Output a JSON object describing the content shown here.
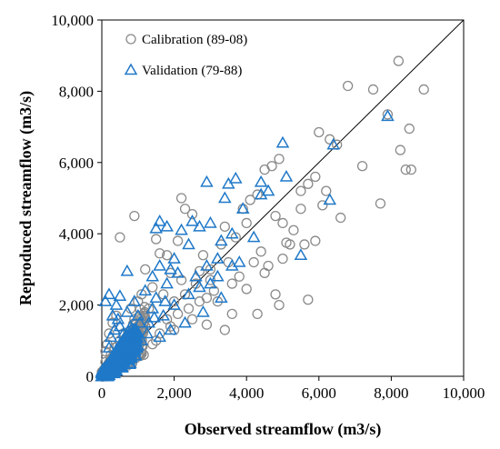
{
  "chart_data": {
    "type": "scatter",
    "xlabel": "Observed streamflow (m3/s)",
    "ylabel": "Reproduced streamflow (m3/s)",
    "xlim": [
      0,
      10000
    ],
    "ylim": [
      0,
      10000
    ],
    "x_ticks": [
      "0",
      "2,000",
      "4,000",
      "6,000",
      "8,000",
      "10,000"
    ],
    "y_ticks": [
      "0",
      "2,000",
      "4,000",
      "6,000",
      "8,000",
      "10,000"
    ],
    "grid": false,
    "legend_position": "top-left",
    "reference_line": "1:1",
    "series": [
      {
        "name": "Calibration (89-08)",
        "marker": "circle",
        "color": "#8a8a8a",
        "points": [
          [
            8200,
            8850
          ],
          [
            6800,
            8150
          ],
          [
            7500,
            8050
          ],
          [
            8900,
            8050
          ],
          [
            7900,
            7350
          ],
          [
            6300,
            6650
          ],
          [
            6000,
            6850
          ],
          [
            6500,
            6500
          ],
          [
            7200,
            5900
          ],
          [
            8500,
            6950
          ],
          [
            8250,
            6350
          ],
          [
            8400,
            5800
          ],
          [
            8550,
            5800
          ],
          [
            7700,
            4850
          ],
          [
            6600,
            4450
          ],
          [
            6100,
            4800
          ],
          [
            5700,
            5400
          ],
          [
            5900,
            5600
          ],
          [
            5500,
            5200
          ],
          [
            5900,
            3800
          ],
          [
            5600,
            3700
          ],
          [
            5100,
            3750
          ],
          [
            5200,
            3700
          ],
          [
            5700,
            2150
          ],
          [
            5000,
            4300
          ],
          [
            4700,
            5900
          ],
          [
            4500,
            5800
          ],
          [
            4900,
            6100
          ],
          [
            4300,
            5100
          ],
          [
            4100,
            4950
          ],
          [
            3900,
            4700
          ],
          [
            4000,
            4300
          ],
          [
            4800,
            4500
          ],
          [
            4600,
            3100
          ],
          [
            4500,
            2900
          ],
          [
            4000,
            2450
          ],
          [
            3800,
            2800
          ],
          [
            4800,
            2300
          ],
          [
            4900,
            2000
          ],
          [
            4300,
            1750
          ],
          [
            3600,
            1750
          ],
          [
            3200,
            2100
          ],
          [
            3000,
            2700
          ],
          [
            2700,
            2950
          ],
          [
            2500,
            4550
          ],
          [
            2200,
            5000
          ],
          [
            2300,
            4700
          ],
          [
            2100,
            3800
          ],
          [
            1800,
            3400
          ],
          [
            900,
            4500
          ],
          [
            500,
            3900
          ],
          [
            1500,
            3850
          ],
          [
            1600,
            3450
          ],
          [
            1200,
            3000
          ],
          [
            2000,
            2100
          ],
          [
            2900,
            1450
          ],
          [
            3400,
            1300
          ],
          [
            2100,
            1750
          ],
          [
            2500,
            1600
          ],
          [
            1900,
            1400
          ],
          [
            1600,
            1200
          ],
          [
            1400,
            900
          ],
          [
            1100,
            850
          ],
          [
            800,
            600
          ],
          [
            700,
            1000
          ],
          [
            600,
            1200
          ],
          [
            900,
            1600
          ],
          [
            1300,
            1900
          ],
          [
            1700,
            2300
          ],
          [
            2300,
            2300
          ],
          [
            2600,
            2600
          ],
          [
            3000,
            3000
          ],
          [
            3500,
            3200
          ],
          [
            3300,
            3700
          ],
          [
            2800,
            3400
          ],
          [
            1400,
            2500
          ],
          [
            1000,
            2100
          ],
          [
            400,
            1700
          ],
          [
            300,
            1500
          ],
          [
            200,
            1200
          ],
          [
            150,
            900
          ],
          [
            100,
            700
          ],
          [
            100,
            400
          ],
          [
            200,
            300
          ],
          [
            300,
            200
          ],
          [
            400,
            500
          ],
          [
            500,
            700
          ],
          [
            600,
            400
          ],
          [
            700,
            300
          ],
          [
            800,
            900
          ],
          [
            1000,
            600
          ],
          [
            1200,
            1400
          ],
          [
            1500,
            1000
          ],
          [
            1800,
            1600
          ],
          [
            2000,
            1300
          ],
          [
            2400,
            1900
          ],
          [
            2700,
            2100
          ],
          [
            3100,
            2400
          ],
          [
            3600,
            2600
          ],
          [
            4200,
            3200
          ],
          [
            4400,
            3500
          ],
          [
            5000,
            3300
          ],
          [
            5300,
            4100
          ],
          [
            5500,
            4700
          ],
          [
            6200,
            5200
          ],
          [
            3400,
            4200
          ],
          [
            3700,
            3900
          ],
          [
            2900,
            2200
          ],
          [
            2200,
            2700
          ],
          [
            1900,
            2900
          ],
          [
            1100,
            2300
          ],
          [
            800,
            1900
          ],
          [
            500,
            1000
          ],
          [
            350,
            800
          ],
          [
            250,
            600
          ]
        ]
      },
      {
        "name": "Validation (79-88)",
        "marker": "triangle",
        "color": "#1f78c8",
        "points": [
          [
            7900,
            7300
          ],
          [
            6400,
            6500
          ],
          [
            5000,
            6550
          ],
          [
            6300,
            4950
          ],
          [
            5100,
            5600
          ],
          [
            4600,
            5200
          ],
          [
            4400,
            5450
          ],
          [
            4400,
            5100
          ],
          [
            3700,
            5550
          ],
          [
            3500,
            5400
          ],
          [
            3400,
            5000
          ],
          [
            2900,
            5450
          ],
          [
            3900,
            4700
          ],
          [
            3600,
            4000
          ],
          [
            3300,
            3800
          ],
          [
            3000,
            4300
          ],
          [
            2700,
            4200
          ],
          [
            2500,
            4350
          ],
          [
            2200,
            4100
          ],
          [
            1800,
            4200
          ],
          [
            1600,
            4350
          ],
          [
            1500,
            4150
          ],
          [
            2400,
            3700
          ],
          [
            3800,
            3200
          ],
          [
            3600,
            3100
          ],
          [
            3200,
            3300
          ],
          [
            4200,
            3900
          ],
          [
            5500,
            3400
          ],
          [
            2000,
            3300
          ],
          [
            1900,
            3000
          ],
          [
            1600,
            3100
          ],
          [
            1400,
            2800
          ],
          [
            700,
            2950
          ],
          [
            500,
            2250
          ],
          [
            400,
            2000
          ],
          [
            200,
            2300
          ],
          [
            100,
            2100
          ],
          [
            300,
            1700
          ],
          [
            500,
            1400
          ],
          [
            700,
            1800
          ],
          [
            900,
            2100
          ],
          [
            1200,
            2400
          ],
          [
            1500,
            2200
          ],
          [
            1800,
            2600
          ],
          [
            2100,
            2900
          ],
          [
            2400,
            2300
          ],
          [
            2700,
            2500
          ],
          [
            3000,
            2600
          ],
          [
            3300,
            2200
          ],
          [
            2800,
            1800
          ],
          [
            2300,
            1500
          ],
          [
            1900,
            1300
          ],
          [
            1600,
            1100
          ],
          [
            1300,
            1500
          ],
          [
            1100,
            1000
          ],
          [
            900,
            700
          ],
          [
            700,
            500
          ],
          [
            500,
            900
          ],
          [
            400,
            600
          ],
          [
            300,
            400
          ],
          [
            250,
            1100
          ],
          [
            600,
            1200
          ],
          [
            800,
            1400
          ],
          [
            1000,
            1700
          ],
          [
            1400,
            1900
          ],
          [
            1700,
            1700
          ],
          [
            2000,
            2000
          ],
          [
            2600,
            2800
          ],
          [
            2900,
            3100
          ],
          [
            3200,
            2800
          ],
          [
            150,
            300
          ],
          [
            200,
            800
          ],
          [
            350,
            1300
          ],
          [
            450,
            1600
          ],
          [
            650,
            1000
          ],
          [
            850,
            1250
          ],
          [
            1050,
            1500
          ],
          [
            1250,
            1200
          ],
          [
            1450,
            1650
          ],
          [
            1750,
            2100
          ]
        ],
        "dense_cluster": {
          "x_max": 1000,
          "y_max": 1000,
          "note_points": 400
        }
      }
    ]
  }
}
